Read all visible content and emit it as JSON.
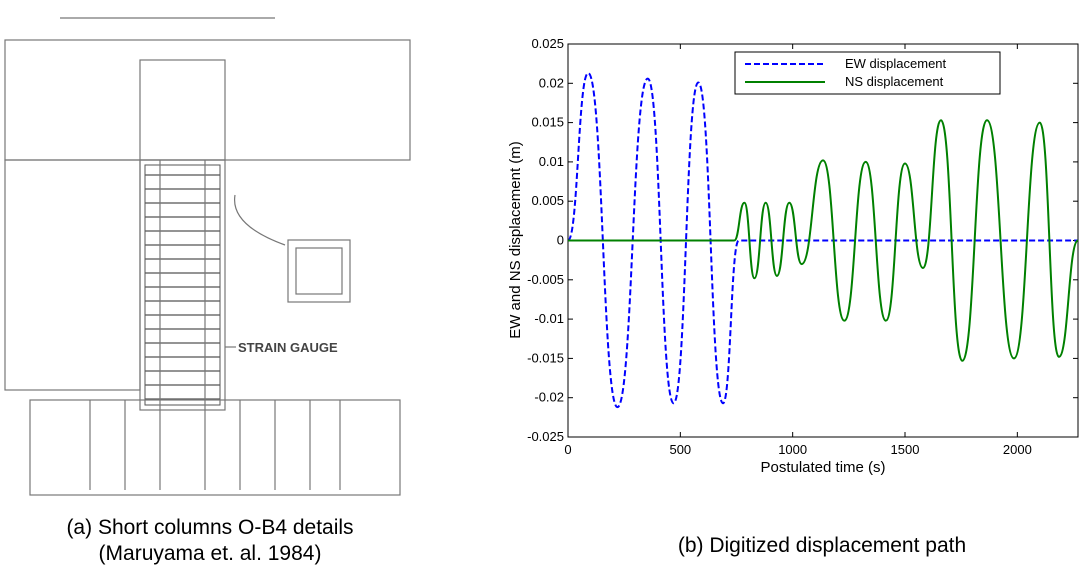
{
  "figure_a": {
    "label": "STRAIN GAUGE",
    "caption": [
      "(a) Short columns O-B4 details",
      "(Maruyama et. al. 1984)"
    ]
  },
  "chart_data": {
    "type": "line",
    "caption": "(b) Digitized displacement path",
    "xlabel": "Postulated time (s)",
    "ylabel": "EW and NS displacement (m)",
    "xlim": [
      0,
      2270
    ],
    "xticks": [
      0,
      500,
      1000,
      1500,
      2000
    ],
    "ylim": [
      -0.025,
      0.025
    ],
    "yticks": [
      -0.025,
      -0.02,
      -0.015,
      -0.01,
      -0.005,
      0,
      0.005,
      0.01,
      0.015,
      0.02,
      0.025
    ],
    "legend": "upper right",
    "series": [
      {
        "name": "EW displacement",
        "color": "#0000ff",
        "dashed": true,
        "x": [
          0,
          90,
          220,
          355,
          470,
          580,
          690,
          760,
          2270
        ],
        "values": [
          0,
          0.0213,
          -0.0212,
          0.0206,
          -0.0207,
          0.0201,
          -0.0207,
          0,
          0
        ]
      },
      {
        "name": "NS displacement",
        "color": "#008000",
        "dashed": false,
        "x": [
          0,
          740,
          785,
          830,
          880,
          930,
          985,
          1040,
          1135,
          1230,
          1325,
          1415,
          1500,
          1580,
          1660,
          1755,
          1865,
          1985,
          2100,
          2185,
          2270
        ],
        "values": [
          0,
          0,
          0.0048,
          -0.0048,
          0.0048,
          -0.0045,
          0.0048,
          -0.003,
          0.0102,
          -0.0102,
          0.01,
          -0.0102,
          0.0098,
          -0.0035,
          0.0153,
          -0.0153,
          0.0153,
          -0.015,
          0.015,
          -0.0148,
          0
        ]
      }
    ]
  }
}
